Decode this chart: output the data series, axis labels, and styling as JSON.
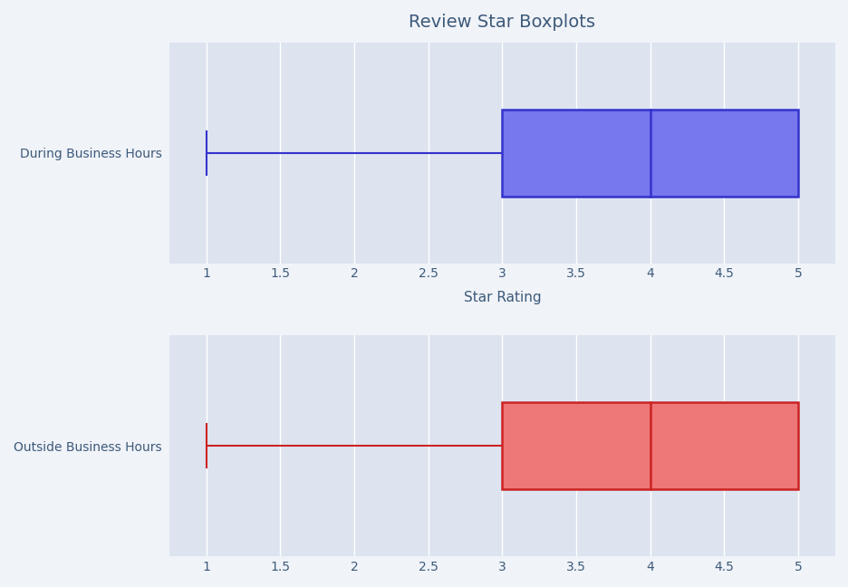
{
  "title": "Review Star Boxplots",
  "xlabel": "Star Rating",
  "top_label": "During Business Hours",
  "bottom_label": "Outside Business Hours",
  "top_stats": {
    "min": 1,
    "q1": 3,
    "median": 4,
    "q3": 5,
    "max": 5,
    "whis_low": 1,
    "whis_high": 5
  },
  "bottom_stats": {
    "min": 1,
    "q1": 3,
    "median": 4,
    "q3": 5,
    "max": 5,
    "whis_low": 1,
    "whis_high": 5
  },
  "top_color": "#3333cc",
  "top_face_color": "#7777ee",
  "bottom_color": "#cc2222",
  "bottom_face_color": "#ee7777",
  "bg_color": "#dde4f0",
  "fig_bg_color": "#f0f3f8",
  "xlim": [
    0.75,
    5.25
  ],
  "xticks": [
    1,
    1.5,
    2,
    2.5,
    3,
    3.5,
    4,
    4.5,
    5
  ],
  "title_color": "#3d5a7a",
  "label_color": "#3d5a7a",
  "tick_color": "#3d5a7a",
  "grid_color": "#ffffff",
  "title_fontsize": 14,
  "label_fontsize": 11,
  "ylabel_fontsize": 11
}
